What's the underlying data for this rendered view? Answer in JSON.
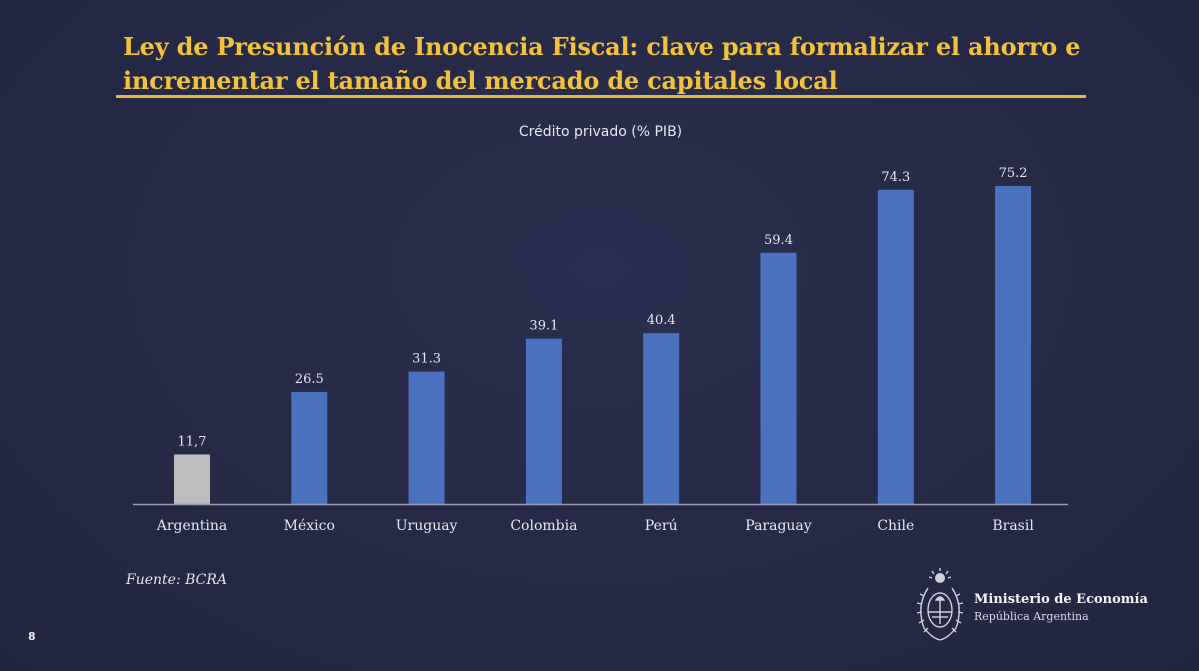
{
  "slide": {
    "title": "Ley de Presunción de Inocencia Fiscal: clave para formalizar el ahorro e incrementar el tamaño del mercado de capitales local",
    "title_lines": [
      "Ley de Presunción de Inocencia Fiscal: clave para formalizar el ahorro e",
      "incrementar el tamaño del mercado de capitales local"
    ],
    "source": "Fuente: BCRA",
    "page_number": "8",
    "ministry": {
      "name": "Ministerio de Economía",
      "subtitle": "República Argentina"
    }
  },
  "chart_data": {
    "type": "bar",
    "title": "Crédito privado (% PIB)",
    "categories": [
      "Argentina",
      "México",
      "Uruguay",
      "Colombia",
      "Perú",
      "Paraguay",
      "Chile",
      "Brasil"
    ],
    "values": [
      11.7,
      26.5,
      31.3,
      39.1,
      40.4,
      59.4,
      74.3,
      75.2
    ],
    "value_labels": [
      "11,7",
      "26.5",
      "31.3",
      "39.1",
      "40.4",
      "59.4",
      "74.3",
      "75.2"
    ],
    "ylim": [
      0,
      75.2
    ],
    "grid": false,
    "legend": "none",
    "colors": {
      "highlight": "#bdbdbd",
      "default": "#4a72c0",
      "axis": "#9a9cab",
      "labels": "#e6e7ef"
    },
    "bar_colors": [
      "#bdbdbd",
      "#4a72c0",
      "#4a72c0",
      "#4a72c0",
      "#4a72c0",
      "#4a72c0",
      "#4a72c0",
      "#4a72c0"
    ]
  },
  "colors": {
    "background": "#262a48",
    "title": "#f2c23a",
    "rule": "#e6b93a"
  }
}
